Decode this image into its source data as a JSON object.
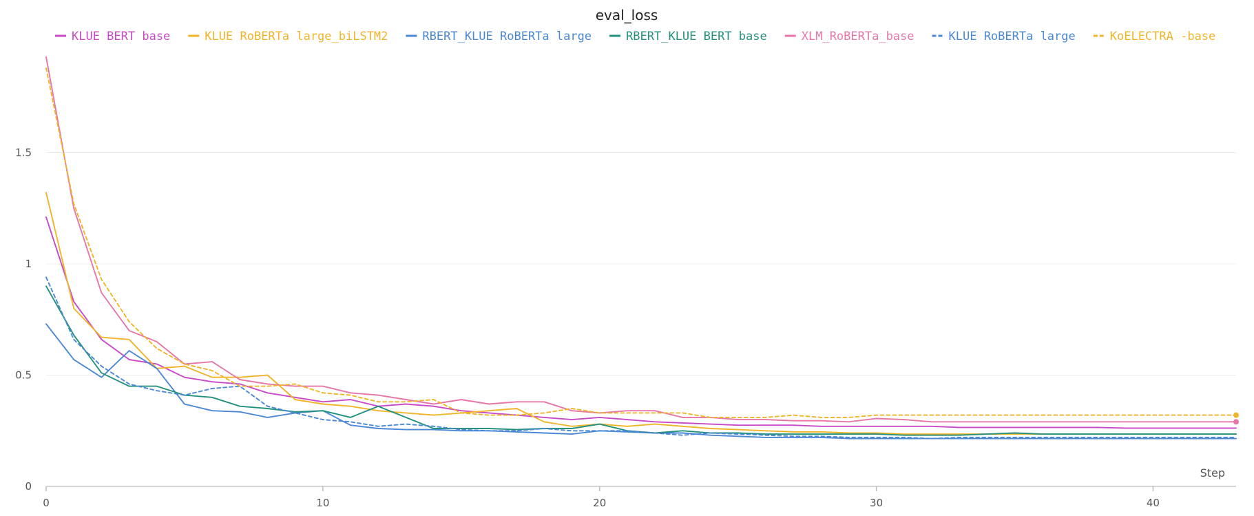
{
  "chart_data": {
    "type": "line",
    "title": "eval_loss",
    "xlabel": "Step",
    "ylabel": "",
    "xlim": [
      0,
      43
    ],
    "ylim": [
      0,
      2.0
    ],
    "xticks": [
      0,
      10,
      20,
      30,
      40
    ],
    "yticks": [
      0,
      0.5,
      1,
      1.5
    ],
    "ytick_labels": [
      "0",
      "0.5",
      "1",
      "1.5"
    ],
    "xtick_labels": [
      "0",
      "10",
      "20",
      "30",
      "40"
    ],
    "grid": "horizontal",
    "legend_position": "top",
    "series": [
      {
        "name": "KLUE BERT base",
        "color": "#c849c8",
        "dashed": false,
        "end_marker": false,
        "values": [
          1.21,
          0.83,
          0.66,
          0.57,
          0.55,
          0.49,
          0.47,
          0.46,
          0.42,
          0.4,
          0.38,
          0.39,
          0.36,
          0.37,
          0.36,
          0.34,
          0.33,
          0.32,
          0.31,
          0.3,
          0.31,
          0.3,
          0.29,
          0.285,
          0.28,
          0.275,
          0.275,
          0.275,
          0.27,
          0.27,
          0.27,
          0.27,
          0.27,
          0.265,
          0.265,
          0.265,
          0.265,
          0.265,
          0.265,
          0.262,
          0.262,
          0.262,
          0.262,
          0.262
        ]
      },
      {
        "name": "KLUE RoBERTa large_biLSTM2",
        "color": "#f0b429",
        "dashed": false,
        "end_marker": false,
        "values": [
          1.32,
          0.8,
          0.67,
          0.66,
          0.53,
          0.54,
          0.49,
          0.49,
          0.5,
          0.39,
          0.37,
          0.36,
          0.34,
          0.33,
          0.32,
          0.33,
          0.34,
          0.35,
          0.29,
          0.27,
          0.28,
          0.27,
          0.28,
          0.27,
          0.26,
          0.255,
          0.25,
          0.245,
          0.245,
          0.24,
          0.24,
          0.235,
          0.235,
          0.235,
          0.235,
          0.235,
          0.235,
          0.235,
          0.235,
          0.235,
          0.235,
          0.235,
          0.235,
          0.235
        ]
      },
      {
        "name": "RBERT_KLUE RoBERTa large",
        "color": "#4a87d5",
        "dashed": false,
        "end_marker": false,
        "values": [
          0.73,
          0.57,
          0.49,
          0.61,
          0.53,
          0.37,
          0.34,
          0.335,
          0.31,
          0.33,
          0.34,
          0.275,
          0.26,
          0.255,
          0.255,
          0.25,
          0.25,
          0.245,
          0.24,
          0.235,
          0.25,
          0.245,
          0.24,
          0.24,
          0.23,
          0.225,
          0.22,
          0.22,
          0.22,
          0.215,
          0.215,
          0.215,
          0.215,
          0.215,
          0.215,
          0.215,
          0.215,
          0.215,
          0.215,
          0.215,
          0.215,
          0.215,
          0.215,
          0.215
        ]
      },
      {
        "name": "RBERT_KLUE BERT base",
        "color": "#23917c",
        "dashed": false,
        "end_marker": false,
        "values": [
          0.9,
          0.68,
          0.51,
          0.45,
          0.45,
          0.41,
          0.4,
          0.36,
          0.35,
          0.335,
          0.34,
          0.31,
          0.36,
          0.31,
          0.26,
          0.26,
          0.26,
          0.255,
          0.26,
          0.26,
          0.28,
          0.25,
          0.24,
          0.25,
          0.24,
          0.24,
          0.235,
          0.235,
          0.235,
          0.235,
          0.235,
          0.23,
          0.23,
          0.23,
          0.235,
          0.24,
          0.235,
          0.235,
          0.235,
          0.235,
          0.235,
          0.235,
          0.235,
          0.235
        ]
      },
      {
        "name": "XLM_RoBERTa_base",
        "color": "#e676a9",
        "dashed": false,
        "end_marker": true,
        "values": [
          1.93,
          1.25,
          0.87,
          0.7,
          0.65,
          0.55,
          0.56,
          0.48,
          0.46,
          0.45,
          0.45,
          0.42,
          0.41,
          0.39,
          0.37,
          0.39,
          0.37,
          0.38,
          0.38,
          0.34,
          0.33,
          0.34,
          0.34,
          0.31,
          0.31,
          0.3,
          0.3,
          0.295,
          0.295,
          0.29,
          0.305,
          0.3,
          0.29,
          0.29,
          0.29,
          0.29,
          0.29,
          0.29,
          0.29,
          0.29,
          0.29,
          0.29,
          0.29,
          0.29
        ]
      },
      {
        "name": "KLUE RoBERTa large",
        "color": "#4a87d5",
        "dashed": true,
        "end_marker": false,
        "values": [
          0.94,
          0.66,
          0.54,
          0.46,
          0.43,
          0.41,
          0.44,
          0.45,
          0.36,
          0.33,
          0.3,
          0.29,
          0.27,
          0.28,
          0.27,
          0.255,
          0.25,
          0.25,
          0.26,
          0.25,
          0.25,
          0.25,
          0.24,
          0.23,
          0.24,
          0.235,
          0.23,
          0.225,
          0.225,
          0.22,
          0.22,
          0.22,
          0.215,
          0.22,
          0.22,
          0.22,
          0.22,
          0.22,
          0.22,
          0.22,
          0.22,
          0.22,
          0.22,
          0.22
        ]
      },
      {
        "name": "KoELECTRA -base",
        "color": "#f0b429",
        "dashed": true,
        "end_marker": true,
        "values": [
          1.88,
          1.27,
          0.93,
          0.74,
          0.62,
          0.55,
          0.52,
          0.45,
          0.45,
          0.46,
          0.42,
          0.41,
          0.38,
          0.38,
          0.39,
          0.33,
          0.32,
          0.32,
          0.33,
          0.35,
          0.33,
          0.33,
          0.33,
          0.33,
          0.31,
          0.31,
          0.31,
          0.32,
          0.31,
          0.31,
          0.32,
          0.32,
          0.32,
          0.32,
          0.32,
          0.32,
          0.32,
          0.32,
          0.32,
          0.32,
          0.32,
          0.32,
          0.32,
          0.32
        ]
      }
    ]
  }
}
